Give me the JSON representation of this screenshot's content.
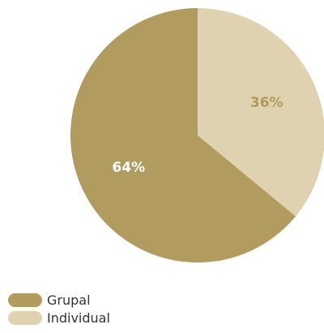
{
  "chart_data": {
    "type": "pie",
    "slices": [
      {
        "name": "Individual",
        "value": 36,
        "label": "36%",
        "color": "#DED2B0",
        "label_color": "#B09A5A"
      },
      {
        "name": "Grupal",
        "value": 64,
        "label": "64%",
        "color": "#B29B5E",
        "label_color": "#FFFFFF"
      }
    ],
    "start": "12 o'clock",
    "direction": "clockwise",
    "legend": {
      "position": "bottom-left",
      "items": [
        {
          "label": "Grupal",
          "color": "#B29B5E"
        },
        {
          "label": "Individual",
          "color": "#DED2B0"
        }
      ]
    }
  }
}
